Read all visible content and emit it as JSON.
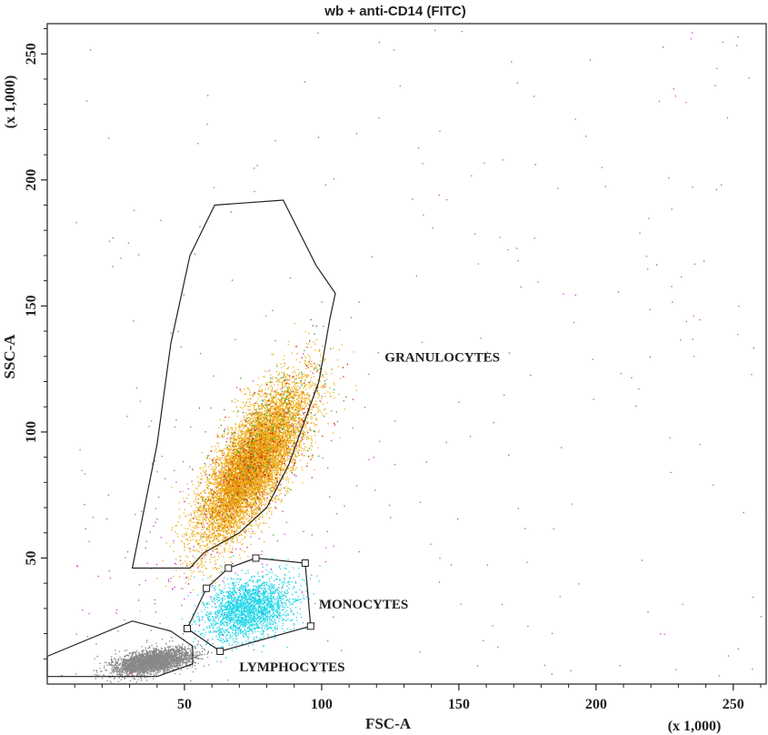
{
  "chart_data": {
    "type": "scatter",
    "title": "wb + anti-CD14 (FITC)",
    "xlabel": "FSC-A",
    "ylabel": "SSC-A",
    "x_multiplier": "(x 1,000)",
    "y_multiplier": "(x 1,000)",
    "xlim": [
      0,
      262
    ],
    "ylim": [
      0,
      262
    ],
    "x_ticks": [
      50,
      100,
      150,
      200,
      250
    ],
    "y_ticks": [
      50,
      100,
      150,
      200,
      250
    ],
    "grid": false,
    "gates": [
      {
        "label": "GRANULOCYTES",
        "color": "#222222",
        "handles": false,
        "label_at": [
          123,
          128
        ],
        "points": [
          [
            31,
            46
          ],
          [
            40,
            95
          ],
          [
            45,
            135
          ],
          [
            52,
            170
          ],
          [
            61,
            190
          ],
          [
            86,
            192
          ],
          [
            98,
            166
          ],
          [
            105,
            155
          ],
          [
            103,
            145
          ],
          [
            99,
            120
          ],
          [
            88,
            87
          ],
          [
            80,
            70
          ],
          [
            70,
            60
          ],
          [
            57,
            52
          ],
          [
            52,
            46
          ]
        ]
      },
      {
        "label": "MONOCYTES",
        "color": "#222222",
        "handles": true,
        "label_at": [
          99,
          30
        ],
        "points": [
          [
            66,
            46
          ],
          [
            76,
            50
          ],
          [
            94,
            48
          ],
          [
            96,
            23
          ],
          [
            63,
            13
          ],
          [
            51,
            22
          ],
          [
            58,
            38
          ]
        ]
      },
      {
        "label": "LYMPHOCYTES",
        "color": "#222222",
        "handles": false,
        "label_at": [
          70,
          5
        ],
        "points": [
          [
            0,
            11
          ],
          [
            31,
            25
          ],
          [
            45,
            21
          ],
          [
            53,
            15
          ],
          [
            53,
            8
          ],
          [
            40,
            3
          ],
          [
            0,
            3
          ]
        ]
      }
    ],
    "populations": [
      {
        "name": "granulocyte-events",
        "count": 8500,
        "color": "#f0b020",
        "center": [
          75,
          88
        ],
        "spread": [
          10,
          16
        ],
        "rho": 0.75
      },
      {
        "name": "granulocyte-events-dark",
        "count": 1300,
        "color": "#e08a00",
        "center": [
          72,
          84
        ],
        "spread": [
          7,
          11
        ],
        "rho": 0.75
      },
      {
        "name": "granulocyte-red-events",
        "count": 350,
        "color": "#cc2222",
        "center": [
          78,
          92
        ],
        "spread": [
          11,
          17
        ],
        "rho": 0.7
      },
      {
        "name": "granulocyte-green-events",
        "count": 250,
        "color": "#33a033",
        "center": [
          82,
          100
        ],
        "spread": [
          12,
          18
        ],
        "rho": 0.7
      },
      {
        "name": "monocyte-events",
        "count": 2300,
        "color": "#22d6e8",
        "center": [
          73,
          30
        ],
        "spread": [
          8,
          6
        ],
        "rho": 0.3
      },
      {
        "name": "lymphocyte-events",
        "count": 3200,
        "color": "#888888",
        "center": [
          38,
          9
        ],
        "spread": [
          7,
          2.5
        ],
        "rho": 0.45
      },
      {
        "name": "debris-events",
        "count": 260,
        "color": "#cc44cc",
        "uniform": [
          [
            10,
            262
          ],
          [
            0,
            262
          ]
        ]
      },
      {
        "name": "debris-events-near",
        "count": 180,
        "color": "#cc44cc",
        "center": [
          60,
          60
        ],
        "spread": [
          25,
          30
        ],
        "rho": 0.5
      }
    ]
  }
}
